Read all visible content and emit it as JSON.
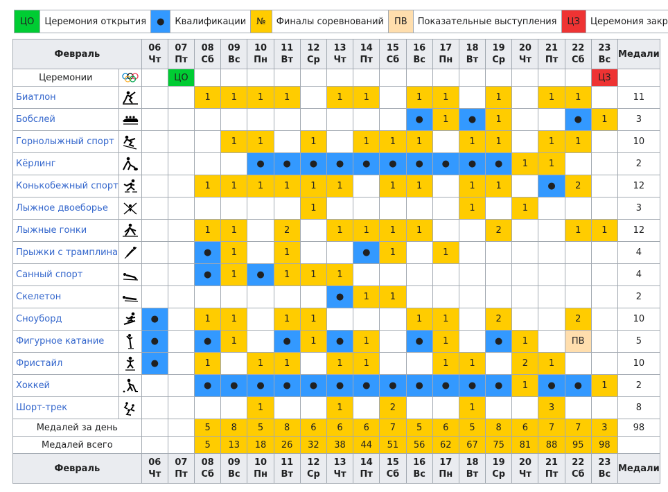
{
  "legend": [
    {
      "code": "oc",
      "symbol": "ЦО",
      "label": "Церемония открытия",
      "color": "#00cc33"
    },
    {
      "code": "ev",
      "symbol": "●",
      "label": "Квалификации",
      "color": "#3399ff"
    },
    {
      "code": "fi",
      "symbol": "№",
      "label": "Финалы соревнований",
      "color": "#ffcc00"
    },
    {
      "code": "ex",
      "symbol": "ПВ",
      "label": "Показательные выступления",
      "color": "#ffdead"
    },
    {
      "code": "cc",
      "symbol": "ЦЗ",
      "label": "Церемония закрытия",
      "color": "#ee3333"
    }
  ],
  "header": {
    "month": "Февраль",
    "medals": "Медали",
    "days": [
      {
        "n": "06",
        "w": "Чт"
      },
      {
        "n": "07",
        "w": "Пт"
      },
      {
        "n": "08",
        "w": "Сб"
      },
      {
        "n": "09",
        "w": "Вс"
      },
      {
        "n": "10",
        "w": "Пн"
      },
      {
        "n": "11",
        "w": "Вт"
      },
      {
        "n": "12",
        "w": "Ср"
      },
      {
        "n": "13",
        "w": "Чт"
      },
      {
        "n": "14",
        "w": "Пт"
      },
      {
        "n": "15",
        "w": "Сб"
      },
      {
        "n": "16",
        "w": "Вс"
      },
      {
        "n": "17",
        "w": "Пн"
      },
      {
        "n": "18",
        "w": "Вт"
      },
      {
        "n": "19",
        "w": "Ср"
      },
      {
        "n": "20",
        "w": "Чт"
      },
      {
        "n": "21",
        "w": "Пт"
      },
      {
        "n": "22",
        "w": "Сб"
      },
      {
        "n": "23",
        "w": "Вс"
      }
    ]
  },
  "ceremonies": {
    "label": "Церемонии",
    "icon": "olympic-rings-icon",
    "cells": [
      "",
      "ЦО",
      "",
      "",
      "",
      "",
      "",
      "",
      "",
      "",
      "",
      "",
      "",
      "",
      "",
      "",
      "",
      "ЦЗ"
    ]
  },
  "sports": [
    {
      "name": "Биатлон",
      "icon": "biathlon-icon",
      "total": "11",
      "cells": [
        "",
        "",
        "1",
        "1",
        "1",
        "1",
        "",
        "1",
        "1",
        "",
        "1",
        "1",
        "",
        "1",
        "",
        "1",
        "1",
        ""
      ]
    },
    {
      "name": "Бобслей",
      "icon": "bobsleigh-icon",
      "total": "3",
      "cells": [
        "",
        "",
        "",
        "",
        "",
        "",
        "",
        "",
        "",
        "",
        "●",
        "1",
        "●",
        "1",
        "",
        "",
        "●",
        "1"
      ]
    },
    {
      "name": "Горнолыжный спорт",
      "icon": "alpine-skiing-icon",
      "total": "10",
      "cells": [
        "",
        "",
        "",
        "1",
        "1",
        "",
        "1",
        "",
        "1",
        "1",
        "1",
        "",
        "1",
        "1",
        "",
        "1",
        "1",
        ""
      ]
    },
    {
      "name": "Кёрлинг",
      "icon": "curling-icon",
      "total": "2",
      "cells": [
        "",
        "",
        "",
        "",
        "●",
        "●",
        "●",
        "●",
        "●",
        "●",
        "●",
        "●",
        "●",
        "●",
        "1",
        "1",
        "",
        ""
      ]
    },
    {
      "name": "Конькобежный спорт",
      "icon": "speed-skating-icon",
      "total": "12",
      "cells": [
        "",
        "",
        "1",
        "1",
        "1",
        "1",
        "1",
        "1",
        "",
        "1",
        "1",
        "",
        "1",
        "1",
        "",
        "●",
        "2",
        ""
      ]
    },
    {
      "name": "Лыжное двоеборье",
      "icon": "nordic-combined-icon",
      "total": "3",
      "cells": [
        "",
        "",
        "",
        "",
        "",
        "",
        "1",
        "",
        "",
        "",
        "",
        "",
        "1",
        "",
        "1",
        "",
        "",
        ""
      ]
    },
    {
      "name": "Лыжные гонки",
      "icon": "cross-country-skiing-icon",
      "total": "12",
      "cells": [
        "",
        "",
        "1",
        "1",
        "",
        "2",
        "",
        "1",
        "1",
        "1",
        "1",
        "",
        "",
        "2",
        "",
        "",
        "1",
        "1"
      ]
    },
    {
      "name": "Прыжки с трамплина",
      "icon": "ski-jumping-icon",
      "total": "4",
      "cells": [
        "",
        "",
        "●",
        "1",
        "",
        "1",
        "",
        "",
        "●",
        "1",
        "",
        "1",
        "",
        "",
        "",
        "",
        "",
        ""
      ]
    },
    {
      "name": "Санный спорт",
      "icon": "luge-icon",
      "total": "4",
      "cells": [
        "",
        "",
        "●",
        "1",
        "●",
        "1",
        "1",
        "1",
        "",
        "",
        "",
        "",
        "",
        "",
        "",
        "",
        "",
        ""
      ]
    },
    {
      "name": "Скелетон",
      "icon": "skeleton-icon",
      "total": "2",
      "cells": [
        "",
        "",
        "",
        "",
        "",
        "",
        "",
        "●",
        "1",
        "1",
        "",
        "",
        "",
        "",
        "",
        "",
        "",
        ""
      ]
    },
    {
      "name": "Сноуборд",
      "icon": "snowboard-icon",
      "total": "10",
      "cells": [
        "●",
        "",
        "1",
        "1",
        "",
        "1",
        "1",
        "",
        "",
        "",
        "1",
        "1",
        "",
        "2",
        "",
        "",
        "2",
        ""
      ]
    },
    {
      "name": "Фигурное катание",
      "icon": "figure-skating-icon",
      "total": "5",
      "cells": [
        "●",
        "",
        "●",
        "1",
        "",
        "●",
        "1",
        "●",
        "1",
        "",
        "●",
        "1",
        "",
        "●",
        "1",
        "",
        "ПВ",
        ""
      ]
    },
    {
      "name": "Фристайл",
      "icon": "freestyle-skiing-icon",
      "total": "10",
      "cells": [
        "●",
        "",
        "1",
        "",
        "1",
        "1",
        "",
        "1",
        "1",
        "",
        "",
        "1",
        "1",
        "",
        "2",
        "1",
        "",
        ""
      ]
    },
    {
      "name": "Хоккей",
      "icon": "ice-hockey-icon",
      "total": "2",
      "cells": [
        "",
        "",
        "●",
        "●",
        "●",
        "●",
        "●",
        "●",
        "●",
        "●",
        "●",
        "●",
        "●",
        "●",
        "1",
        "●",
        "●",
        "1"
      ]
    },
    {
      "name": "Шорт-трек",
      "icon": "short-track-icon",
      "total": "8",
      "cells": [
        "",
        "",
        "",
        "",
        "1",
        "",
        "",
        "1",
        "",
        "2",
        "",
        "",
        "1",
        "",
        "",
        "3",
        "",
        ""
      ]
    }
  ],
  "daily": {
    "label": "Медалей за день",
    "total": "98",
    "cells": [
      "",
      "",
      "5",
      "8",
      "5",
      "8",
      "6",
      "6",
      "6",
      "7",
      "5",
      "6",
      "5",
      "8",
      "6",
      "7",
      "7",
      "3"
    ]
  },
  "cumulative": {
    "label": "Медалей всего",
    "cells": [
      "",
      "",
      "5",
      "13",
      "18",
      "26",
      "32",
      "38",
      "44",
      "51",
      "56",
      "62",
      "67",
      "75",
      "81",
      "88",
      "95",
      "98"
    ]
  }
}
